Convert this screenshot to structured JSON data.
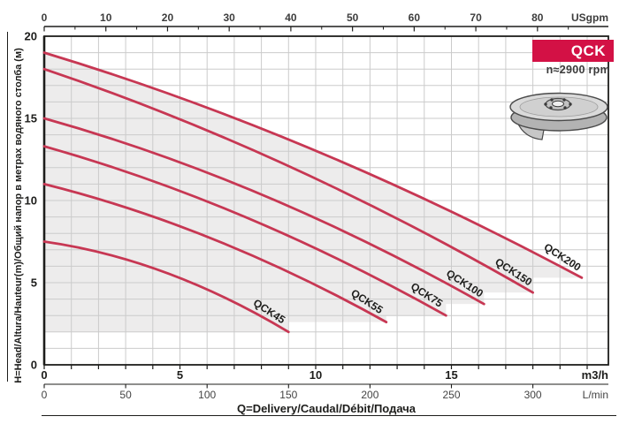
{
  "figure": {
    "badge": "QCK",
    "speed": "n≈2900 rpm"
  },
  "chart_data": {
    "type": "line",
    "title": "QCK",
    "subtitle": "n≈2900 rpm",
    "xlabel": "Q=Delivery/Caudal/Débit/Подача",
    "ylabel": "H=Head/Altura/Hauteur(m)/Общий напор в метрах водяного столба (м)",
    "grid": true,
    "legend_position": "labels-on-curves",
    "axes": {
      "top": {
        "unit": "USgpm",
        "ticks": [
          0,
          10,
          20,
          30,
          40,
          50,
          60,
          70,
          80
        ],
        "minor_step": 5,
        "max": 88
      },
      "bottom_m3h": {
        "unit": "m3/h",
        "ticks": [
          0,
          5,
          10,
          15
        ],
        "minor_step": 1,
        "max": 20
      },
      "bottom_lmin": {
        "unit": "L/min",
        "ticks": [
          0,
          50,
          100,
          150,
          200,
          250,
          300
        ],
        "step": 50,
        "max": 300
      },
      "left": {
        "unit": "m",
        "ticks": [
          0,
          5,
          10,
          15,
          20
        ],
        "range": [
          0,
          20
        ]
      }
    },
    "series": [
      {
        "name": "QCK45",
        "points_m3h_m": [
          [
            0,
            7.5
          ],
          [
            4.5,
            5.6
          ],
          [
            9.0,
            2.0
          ]
        ]
      },
      {
        "name": "QCK55",
        "points_m3h_m": [
          [
            0,
            11.0
          ],
          [
            6.3,
            7.6
          ],
          [
            12.6,
            2.6
          ]
        ]
      },
      {
        "name": "QCK75",
        "points_m3h_m": [
          [
            0,
            13.3
          ],
          [
            7.4,
            9.0
          ],
          [
            14.8,
            3.0
          ]
        ]
      },
      {
        "name": "QCK100",
        "points_m3h_m": [
          [
            0,
            15.0
          ],
          [
            8.1,
            10.3
          ],
          [
            16.2,
            3.7
          ]
        ]
      },
      {
        "name": "QCK150",
        "points_m3h_m": [
          [
            0,
            18.0
          ],
          [
            9.0,
            12.1
          ],
          [
            18.0,
            4.4
          ]
        ]
      },
      {
        "name": "QCK200",
        "points_m3h_m": [
          [
            0,
            19.0
          ],
          [
            9.9,
            13.1
          ],
          [
            19.8,
            5.3
          ]
        ]
      }
    ],
    "shaded_region": "area under QCK200 curve with stepped lower boundary at each curve endpoint, from H=2 m",
    "colors": {
      "curve": "#c73753",
      "badge": "#d31145",
      "shade": "#edecec",
      "grid": "#cbcbcb",
      "axis": "#1d1d1b",
      "secondary_text": "#3d3d3d"
    }
  }
}
